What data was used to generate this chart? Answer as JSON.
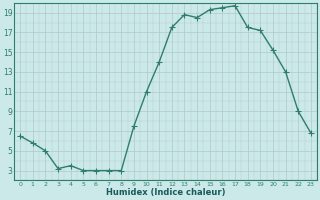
{
  "x": [
    0,
    1,
    2,
    3,
    4,
    5,
    6,
    7,
    8,
    9,
    10,
    11,
    12,
    13,
    14,
    15,
    16,
    17,
    18,
    19,
    20,
    21,
    22,
    23
  ],
  "y": [
    6.5,
    5.8,
    5.0,
    3.2,
    3.5,
    3.0,
    3.0,
    3.0,
    3.0,
    7.5,
    11.0,
    14.0,
    17.5,
    18.8,
    18.5,
    19.3,
    19.5,
    19.7,
    17.5,
    17.2,
    15.2,
    13.0,
    9.0,
    6.8
  ],
  "line_color": "#2e7d6e",
  "bg_color": "#cce9e9",
  "grid_color": "#b0c8c8",
  "grid_color_red": "#d4a0a0",
  "xlabel": "Humidex (Indice chaleur)",
  "xlim": [
    -0.5,
    23.5
  ],
  "ylim": [
    2,
    20
  ],
  "yticks": [
    3,
    5,
    7,
    9,
    11,
    13,
    15,
    17,
    19
  ],
  "xticks": [
    0,
    1,
    2,
    3,
    4,
    5,
    6,
    7,
    8,
    9,
    10,
    11,
    12,
    13,
    14,
    15,
    16,
    17,
    18,
    19,
    20,
    21,
    22,
    23
  ],
  "xtick_labels": [
    "0",
    "1",
    "2",
    "3",
    "4",
    "5",
    "6",
    "7",
    "8",
    "9",
    "10",
    "11",
    "12",
    "13",
    "14",
    "15",
    "16",
    "17",
    "18",
    "19",
    "20",
    "21",
    "22",
    "23"
  ],
  "marker": "+",
  "marker_size": 4,
  "linewidth": 1.0
}
